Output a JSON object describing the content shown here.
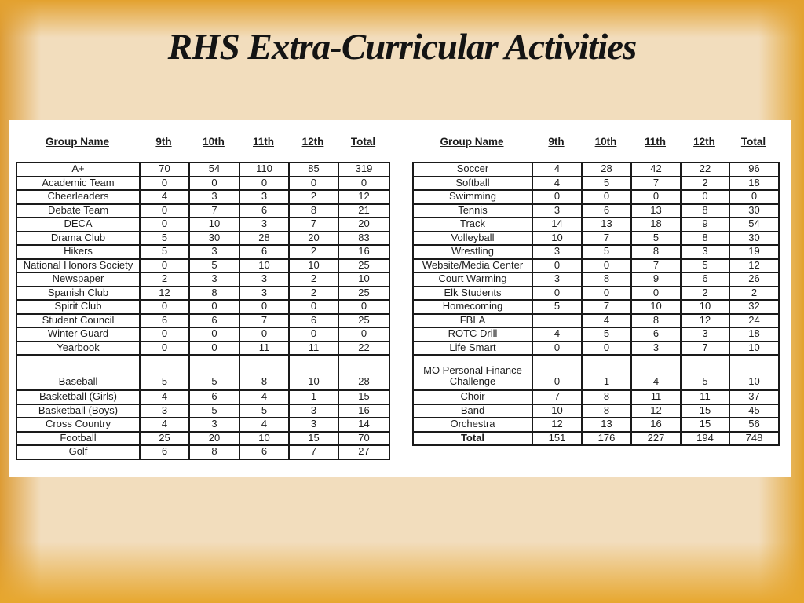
{
  "title": "RHS Extra-Curricular Activities",
  "colors": {
    "slide_center": "#f2ddbd",
    "slide_edge_orange": "#e3a12f",
    "panel_background": "#ffffff",
    "table_border": "#1a1a1a",
    "text": "#1d1d1d"
  },
  "tables": [
    {
      "name": "clubs-table",
      "columns": [
        "Group Name",
        "9th",
        "10th",
        "11th",
        "12th",
        "Total"
      ],
      "rows": [
        {
          "name": "A+",
          "values": [
            "70",
            "54",
            "110",
            "85",
            "319"
          ]
        },
        {
          "name": "Academic Team",
          "values": [
            "0",
            "0",
            "0",
            "0",
            "0"
          ]
        },
        {
          "name": "Cheerleaders",
          "values": [
            "4",
            "3",
            "3",
            "2",
            "12"
          ]
        },
        {
          "name": "Debate Team",
          "values": [
            "0",
            "7",
            "6",
            "8",
            "21"
          ]
        },
        {
          "name": "DECA",
          "values": [
            "0",
            "10",
            "3",
            "7",
            "20"
          ]
        },
        {
          "name": "Drama Club",
          "values": [
            "5",
            "30",
            "28",
            "20",
            "83"
          ]
        },
        {
          "name": "Hikers",
          "values": [
            "5",
            "3",
            "6",
            "2",
            "16"
          ]
        },
        {
          "name": "National Honors Society",
          "values": [
            "0",
            "5",
            "10",
            "10",
            "25"
          ]
        },
        {
          "name": "Newspaper",
          "values": [
            "2",
            "3",
            "3",
            "2",
            "10"
          ]
        },
        {
          "name": "Spanish Club",
          "values": [
            "12",
            "8",
            "3",
            "2",
            "25"
          ]
        },
        {
          "name": "Spirit Club",
          "values": [
            "0",
            "0",
            "0",
            "0",
            "0"
          ]
        },
        {
          "name": "Student Council",
          "values": [
            "6",
            "6",
            "7",
            "6",
            "25"
          ]
        },
        {
          "name": "Winter Guard",
          "values": [
            "0",
            "0",
            "0",
            "0",
            "0"
          ]
        },
        {
          "name": "Yearbook",
          "values": [
            "0",
            "0",
            "11",
            "11",
            "22"
          ]
        },
        {
          "name": "Baseball",
          "values": [
            "5",
            "5",
            "8",
            "10",
            "28"
          ],
          "tall": true
        },
        {
          "name": "Basketball (Girls)",
          "values": [
            "4",
            "6",
            "4",
            "1",
            "15"
          ]
        },
        {
          "name": "Basketball (Boys)",
          "values": [
            "3",
            "5",
            "5",
            "3",
            "16"
          ]
        },
        {
          "name": "Cross Country",
          "values": [
            "4",
            "3",
            "4",
            "3",
            "14"
          ]
        },
        {
          "name": "Football",
          "values": [
            "25",
            "20",
            "10",
            "15",
            "70"
          ]
        },
        {
          "name": "Golf",
          "values": [
            "6",
            "8",
            "6",
            "7",
            "27"
          ]
        }
      ]
    },
    {
      "name": "sports-table",
      "columns": [
        "Group Name",
        "9th",
        "10th",
        "11th",
        "12th",
        "Total"
      ],
      "rows": [
        {
          "name": "Soccer",
          "values": [
            "4",
            "28",
            "42",
            "22",
            "96"
          ]
        },
        {
          "name": "Softball",
          "values": [
            "4",
            "5",
            "7",
            "2",
            "18"
          ]
        },
        {
          "name": "Swimming",
          "values": [
            "0",
            "0",
            "0",
            "0",
            "0"
          ]
        },
        {
          "name": "Tennis",
          "values": [
            "3",
            "6",
            "13",
            "8",
            "30"
          ]
        },
        {
          "name": "Track",
          "values": [
            "14",
            "13",
            "18",
            "9",
            "54"
          ]
        },
        {
          "name": "Volleyball",
          "values": [
            "10",
            "7",
            "5",
            "8",
            "30"
          ]
        },
        {
          "name": "Wrestling",
          "values": [
            "3",
            "5",
            "8",
            "3",
            "19"
          ]
        },
        {
          "name": "Website/Media Center",
          "values": [
            "0",
            "0",
            "7",
            "5",
            "12"
          ]
        },
        {
          "name": "Court Warming",
          "values": [
            "3",
            "8",
            "9",
            "6",
            "26"
          ]
        },
        {
          "name": "Elk Students",
          "values": [
            "0",
            "0",
            "0",
            "2",
            "2"
          ]
        },
        {
          "name": "Homecoming",
          "values": [
            "5",
            "7",
            "10",
            "10",
            "32"
          ]
        },
        {
          "name": "FBLA",
          "values": [
            "",
            "4",
            "8",
            "12",
            "24"
          ]
        },
        {
          "name": "ROTC Drill",
          "values": [
            "4",
            "5",
            "6",
            "3",
            "18"
          ]
        },
        {
          "name": "Life Smart",
          "values": [
            "0",
            "0",
            "3",
            "7",
            "10"
          ]
        },
        {
          "name": "MO Personal Finance Challenge",
          "values": [
            "0",
            "1",
            "4",
            "5",
            "10"
          ],
          "tall": true
        },
        {
          "name": "Choir",
          "values": [
            "7",
            "8",
            "11",
            "11",
            "37"
          ]
        },
        {
          "name": "Band",
          "values": [
            "10",
            "8",
            "12",
            "15",
            "45"
          ]
        },
        {
          "name": "Orchestra",
          "values": [
            "12",
            "13",
            "16",
            "15",
            "56"
          ]
        },
        {
          "name": "Total",
          "values": [
            "151",
            "176",
            "227",
            "194",
            "748"
          ],
          "bold": true
        }
      ]
    }
  ]
}
